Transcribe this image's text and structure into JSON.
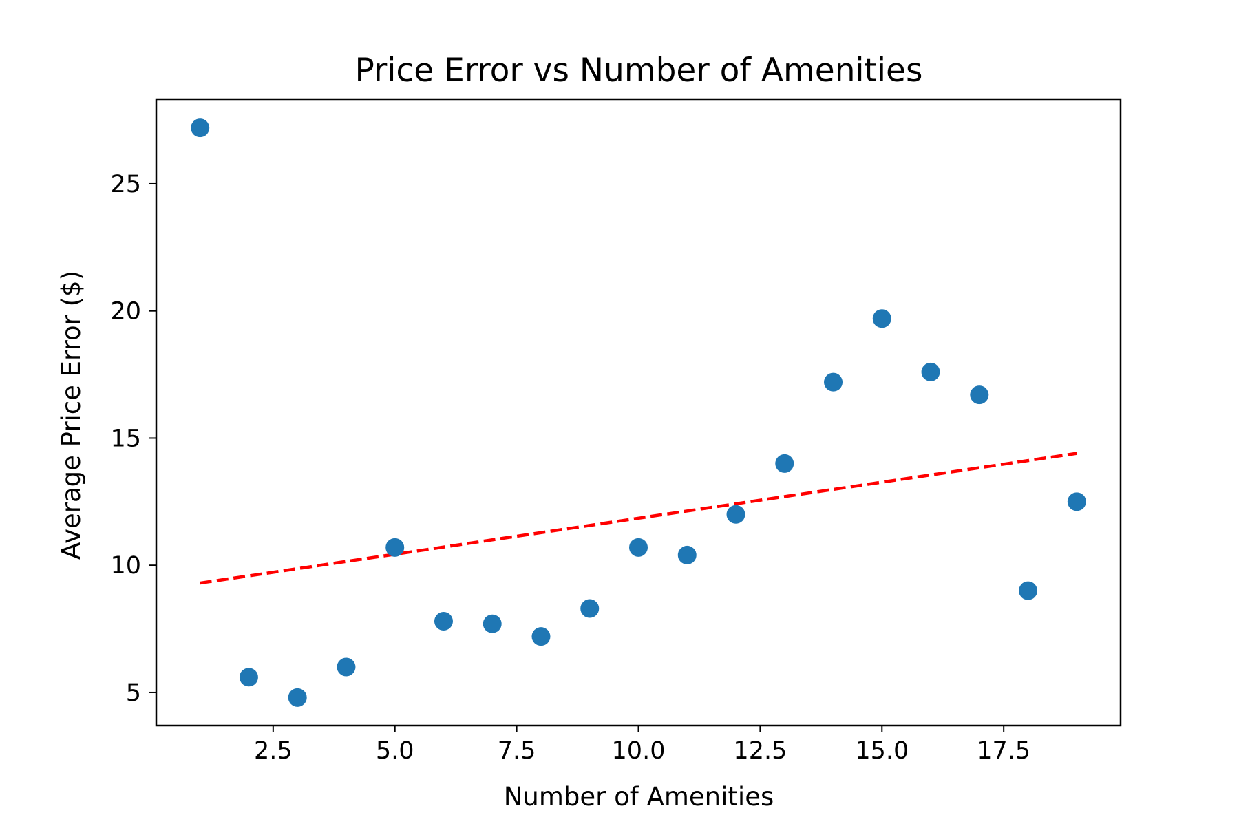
{
  "chart_data": {
    "type": "scatter",
    "title": "Price Error vs Number of Amenities",
    "xlabel": "Number of Amenities",
    "ylabel": "Average Price Error ($)",
    "xlim": [
      0.1,
      19.9
    ],
    "ylim": [
      3.7,
      28.3
    ],
    "xticks": [
      2.5,
      5.0,
      7.5,
      10.0,
      12.5,
      15.0,
      17.5
    ],
    "xtick_labels": [
      "2.5",
      "5.0",
      "7.5",
      "10.0",
      "12.5",
      "15.0",
      "17.5"
    ],
    "yticks": [
      5,
      10,
      15,
      20,
      25
    ],
    "ytick_labels": [
      "5",
      "10",
      "15",
      "20",
      "25"
    ],
    "grid": false,
    "legend": false,
    "series": [
      {
        "kind": "points",
        "color": "#1f77b4",
        "points": [
          {
            "x": 1,
            "y": 27.2
          },
          {
            "x": 2,
            "y": 5.6
          },
          {
            "x": 3,
            "y": 4.8
          },
          {
            "x": 4,
            "y": 6.0
          },
          {
            "x": 5,
            "y": 10.7
          },
          {
            "x": 6,
            "y": 7.8
          },
          {
            "x": 7,
            "y": 7.7
          },
          {
            "x": 8,
            "y": 7.2
          },
          {
            "x": 9,
            "y": 8.3
          },
          {
            "x": 10,
            "y": 10.7
          },
          {
            "x": 11,
            "y": 10.4
          },
          {
            "x": 12,
            "y": 12.0
          },
          {
            "x": 13,
            "y": 14.0
          },
          {
            "x": 14,
            "y": 17.2
          },
          {
            "x": 15,
            "y": 19.7
          },
          {
            "x": 16,
            "y": 17.6
          },
          {
            "x": 17,
            "y": 16.7
          },
          {
            "x": 18,
            "y": 9.0
          },
          {
            "x": 19,
            "y": 12.5
          }
        ]
      },
      {
        "kind": "trend-line",
        "color": "#ff0000",
        "line_style": "dashed",
        "points": [
          {
            "x": 1,
            "y": 9.3
          },
          {
            "x": 19,
            "y": 14.4
          }
        ]
      }
    ]
  }
}
